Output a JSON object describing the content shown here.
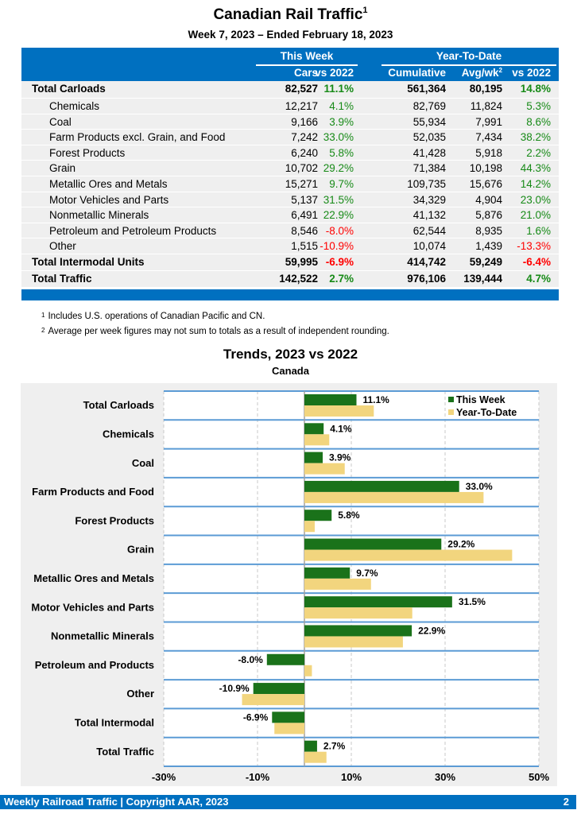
{
  "header": {
    "title": "Canadian Rail Traffic",
    "title_footnote": "1",
    "subtitle": "Week 7, 2023 – Ended February 18, 2023"
  },
  "table": {
    "group_this_week": "This Week",
    "group_ytd": "Year-To-Date",
    "columns": [
      "Cars",
      "vs 2022",
      "Cumulative",
      "Avg/wk",
      "vs 2022"
    ],
    "avg_footnote": "2",
    "rows": [
      {
        "label": "Total Carloads",
        "cars": "82,527",
        "vs_week": "11.1%",
        "cumulative": "561,364",
        "avg": "80,195",
        "vs_ytd": "14.8%",
        "bold": true
      },
      {
        "label": "Chemicals",
        "cars": "12,217",
        "vs_week": "4.1%",
        "cumulative": "82,769",
        "avg": "11,824",
        "vs_ytd": "5.3%"
      },
      {
        "label": "Coal",
        "cars": "9,166",
        "vs_week": "3.9%",
        "cumulative": "55,934",
        "avg": "7,991",
        "vs_ytd": "8.6%"
      },
      {
        "label": "Farm Products excl. Grain, and Food",
        "cars": "7,242",
        "vs_week": "33.0%",
        "cumulative": "52,035",
        "avg": "7,434",
        "vs_ytd": "38.2%"
      },
      {
        "label": "Forest Products",
        "cars": "6,240",
        "vs_week": "5.8%",
        "cumulative": "41,428",
        "avg": "5,918",
        "vs_ytd": "2.2%"
      },
      {
        "label": "Grain",
        "cars": "10,702",
        "vs_week": "29.2%",
        "cumulative": "71,384",
        "avg": "10,198",
        "vs_ytd": "44.3%"
      },
      {
        "label": "Metallic Ores and Metals",
        "cars": "15,271",
        "vs_week": "9.7%",
        "cumulative": "109,735",
        "avg": "15,676",
        "vs_ytd": "14.2%"
      },
      {
        "label": "Motor Vehicles and Parts",
        "cars": "5,137",
        "vs_week": "31.5%",
        "cumulative": "34,329",
        "avg": "4,904",
        "vs_ytd": "23.0%"
      },
      {
        "label": "Nonmetallic Minerals",
        "cars": "6,491",
        "vs_week": "22.9%",
        "cumulative": "41,132",
        "avg": "5,876",
        "vs_ytd": "21.0%"
      },
      {
        "label": "Petroleum and Petroleum Products",
        "cars": "8,546",
        "vs_week": "-8.0%",
        "cumulative": "62,544",
        "avg": "8,935",
        "vs_ytd": "1.6%"
      },
      {
        "label": "Other",
        "cars": "1,515",
        "vs_week": "-10.9%",
        "cumulative": "10,074",
        "avg": "1,439",
        "vs_ytd": "-13.3%"
      },
      {
        "label": "Total Intermodal Units",
        "cars": "59,995",
        "vs_week": "-6.9%",
        "cumulative": "414,742",
        "avg": "59,249",
        "vs_ytd": "-6.4%",
        "bold": true
      },
      {
        "label": "Total Traffic",
        "cars": "142,522",
        "vs_week": "2.7%",
        "cumulative": "976,106",
        "avg": "139,444",
        "vs_ytd": "4.7%",
        "bold": true
      }
    ]
  },
  "notes": [
    {
      "mark": "1",
      "text": "Includes U.S. operations of Canadian Pacific and CN."
    },
    {
      "mark": "2",
      "text": "Average per week figures may not sum to totals as a result of independent rounding."
    }
  ],
  "colors": {
    "brand_blue": "#0070c0",
    "positive": "#178a17",
    "negative": "#ff0000",
    "this_week_bar": "#1a721a",
    "ytd_bar": "#f2d57e"
  },
  "chart_data": {
    "type": "bar",
    "orientation": "horizontal",
    "title": "Trends, 2023 vs 2022",
    "subtitle": "Canada",
    "xlabel": "",
    "ylabel": "",
    "categories": [
      "Total Carloads",
      "Chemicals",
      "Coal",
      "Farm Products and Food",
      "Forest Products",
      "Grain",
      "Metallic Ores and Metals",
      "Motor Vehicles and Parts",
      "Nonmetallic Minerals",
      "Petroleum and Products",
      "Other",
      "Total Intermodal",
      "Total Traffic"
    ],
    "series": [
      {
        "name": "This Week",
        "values": [
          11.1,
          4.1,
          3.9,
          33.0,
          5.8,
          29.2,
          9.7,
          31.5,
          22.9,
          -8.0,
          -10.9,
          -6.9,
          2.7
        ],
        "labels": [
          "11.1%",
          "4.1%",
          "3.9%",
          "33.0%",
          "5.8%",
          "29.2%",
          "9.7%",
          "31.5%",
          "22.9%",
          "-8.0%",
          "-10.9%",
          "-6.9%",
          "2.7%"
        ]
      },
      {
        "name": "Year-To-Date",
        "values": [
          14.8,
          5.3,
          8.6,
          38.2,
          2.2,
          44.3,
          14.2,
          23.0,
          21.0,
          1.6,
          -13.3,
          -6.4,
          4.7
        ]
      }
    ],
    "xlim": [
      -30,
      50
    ],
    "xticks": [
      -30,
      -10,
      10,
      30,
      50
    ],
    "xtick_labels": [
      "-30%",
      "-10%",
      "10%",
      "30%",
      "50%"
    ],
    "grid": true,
    "legend": "top-right"
  },
  "footer": {
    "text": "Weekly Railroad Traffic | Copyright AAR, 2023",
    "page": "2"
  }
}
